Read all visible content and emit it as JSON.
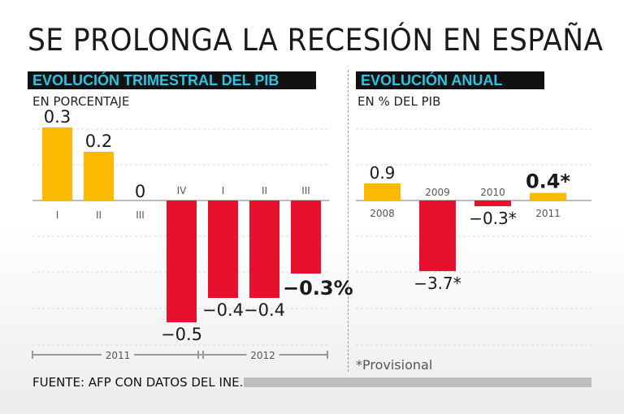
{
  "title": "SE PROLONGA LA RECESIÓN EN ESPAÑA",
  "footer": "FUENTE: AFP CON DATOS DEL INE.",
  "colors": {
    "positive": "#FBBA00",
    "negative": "#E8112D",
    "header_bg": "#111111",
    "header_text": "#2EC4E6"
  },
  "chart_data": [
    {
      "type": "bar",
      "title": "EVOLUCIÓN TRIMESTRAL DEL PIB",
      "subtitle": "EN PORCENTAJE",
      "categories": [
        "I",
        "II",
        "III",
        "IV",
        "I",
        "II",
        "III"
      ],
      "values": [
        0.3,
        0.2,
        0,
        -0.5,
        -0.4,
        -0.4,
        -0.3
      ],
      "value_labels": [
        "0.3",
        "0.2",
        "0",
        "−0.5",
        "−0.4",
        "−0.4",
        "−0.3%"
      ],
      "groups": [
        {
          "label": "2011",
          "from": 0,
          "to": 3
        },
        {
          "label": "2012",
          "from": 4,
          "to": 6
        }
      ],
      "ylim": [
        -0.5,
        0.3
      ]
    },
    {
      "type": "bar",
      "title": "EVOLUCIÓN ANUAL",
      "subtitle": "EN % DEL PIB",
      "categories": [
        "2008",
        "2009",
        "2010",
        "2011"
      ],
      "values": [
        0.9,
        -3.7,
        -0.3,
        0.4
      ],
      "value_labels": [
        "0.9",
        "−3.7*",
        "−0.3*",
        "0.4*"
      ],
      "ylim": [
        -3.7,
        0.9
      ]
    }
  ],
  "note": "*Provisional"
}
